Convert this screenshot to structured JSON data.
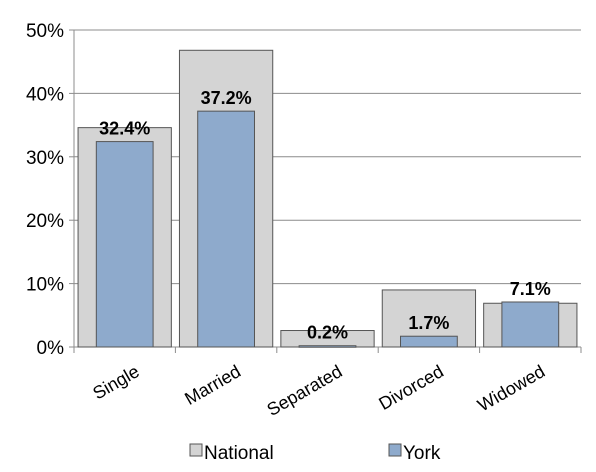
{
  "chart_data": {
    "type": "bar",
    "categories": [
      "Single",
      "Married",
      "Separated",
      "Divorced",
      "Widowed"
    ],
    "series": [
      {
        "name": "National",
        "values": [
          34.6,
          46.8,
          2.6,
          9.0,
          6.9
        ]
      },
      {
        "name": "York",
        "values": [
          32.4,
          37.2,
          0.2,
          1.7,
          7.1
        ]
      }
    ],
    "data_labels": [
      "32.4%",
      "37.2%",
      "0.2%",
      "1.7%",
      "7.1%"
    ],
    "y_ticks": [
      "0%",
      "10%",
      "20%",
      "30%",
      "40%",
      "50%"
    ],
    "ylim": [
      0,
      50
    ],
    "grid": true,
    "legend_position": "bottom",
    "colors": {
      "National": "#d4d4d4",
      "York": "#8eaacc",
      "bar_stroke": "#555555",
      "grid": "#8c8c8c"
    }
  }
}
